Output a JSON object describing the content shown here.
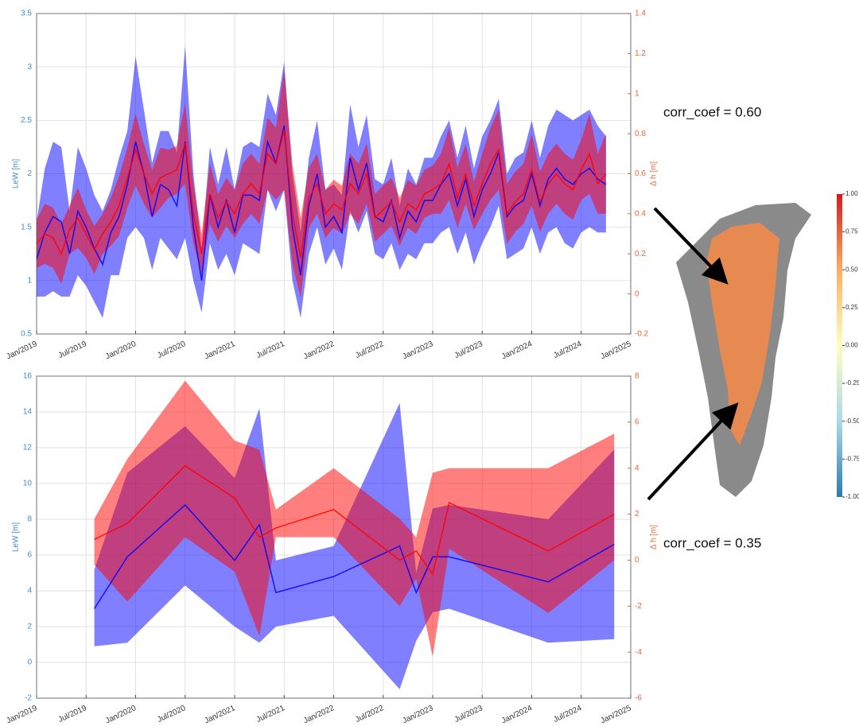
{
  "chart_data": [
    {
      "type": "line-band",
      "ylabel": "LeW [m]",
      "y2label": "Δ h [m]",
      "grid": true,
      "xlim": [
        "2019-01",
        "2025-01"
      ],
      "xticks": [
        {
          "value": "2019-01",
          "label": "Jan/2019"
        },
        {
          "value": "2019-07",
          "label": "Jul/2019"
        },
        {
          "value": "2020-01",
          "label": "Jan/2020"
        },
        {
          "value": "2020-07",
          "label": "Jul/2020"
        },
        {
          "value": "2021-01",
          "label": "Jan/2021"
        },
        {
          "value": "2021-07",
          "label": "Jul/2021"
        },
        {
          "value": "2022-01",
          "label": "Jan/2022"
        },
        {
          "value": "2022-07",
          "label": "Jul/2022"
        },
        {
          "value": "2023-01",
          "label": "Jan/2023"
        },
        {
          "value": "2023-07",
          "label": "Jul/2023"
        },
        {
          "value": "2024-01",
          "label": "Jan/2024"
        },
        {
          "value": "2024-07",
          "label": "Jul/2024"
        },
        {
          "value": "2025-01",
          "label": "Jan/2025"
        }
      ],
      "ylim": [
        0.5,
        3.5
      ],
      "yticks": [
        0.5,
        1,
        1.5,
        2,
        2.5,
        3,
        3.5
      ],
      "y2lim": [
        -0.2,
        1.4
      ],
      "y2ticks": [
        -0.2,
        0,
        0.2,
        0.4,
        0.6,
        0.8,
        1,
        1.2,
        1.4
      ],
      "x": [
        "2019-01",
        "2019-02",
        "2019-03",
        "2019-04",
        "2019-05",
        "2019-06",
        "2019-07",
        "2019-08",
        "2019-09",
        "2019-10",
        "2019-11",
        "2019-12",
        "2020-01",
        "2020-02",
        "2020-03",
        "2020-04",
        "2020-05",
        "2020-06",
        "2020-07",
        "2020-08",
        "2020-09",
        "2020-10",
        "2020-11",
        "2020-12",
        "2021-01",
        "2021-02",
        "2021-03",
        "2021-04",
        "2021-05",
        "2021-06",
        "2021-07",
        "2021-08",
        "2021-09",
        "2021-10",
        "2021-11",
        "2021-12",
        "2022-01",
        "2022-02",
        "2022-03",
        "2022-04",
        "2022-05",
        "2022-06",
        "2022-07",
        "2022-08",
        "2022-09",
        "2022-10",
        "2022-11",
        "2022-12",
        "2023-01",
        "2023-02",
        "2023-03",
        "2023-04",
        "2023-05",
        "2023-06",
        "2023-07",
        "2023-08",
        "2023-09",
        "2023-10",
        "2023-11",
        "2023-12",
        "2024-01",
        "2024-02",
        "2024-03",
        "2024-04",
        "2024-05",
        "2024-06",
        "2024-07",
        "2024-08",
        "2024-09",
        "2024-10"
      ],
      "series": [
        {
          "color": "#0000ff",
          "values": [
            1.2,
            1.45,
            1.6,
            1.55,
            1.25,
            1.65,
            1.5,
            1.3,
            1.15,
            1.45,
            1.6,
            1.9,
            2.3,
            2.0,
            1.6,
            1.9,
            1.85,
            1.7,
            2.3,
            1.5,
            1.0,
            1.8,
            1.5,
            1.75,
            1.45,
            1.8,
            1.8,
            1.75,
            2.3,
            2.1,
            2.45,
            1.5,
            1.05,
            1.7,
            2.0,
            1.5,
            1.6,
            1.45,
            2.15,
            1.85,
            2.1,
            1.6,
            1.55,
            1.75,
            1.4,
            1.65,
            1.55,
            1.75,
            1.75,
            1.9,
            2.0,
            1.7,
            1.95,
            1.6,
            1.85,
            2.0,
            2.2,
            1.6,
            1.7,
            1.75,
            2.0,
            1.7,
            1.95,
            2.05,
            1.95,
            1.9,
            2.0,
            2.05,
            1.95,
            1.9
          ],
          "errors": [
            0.35,
            0.6,
            0.7,
            0.7,
            0.4,
            0.6,
            0.55,
            0.5,
            0.5,
            0.4,
            0.55,
            0.5,
            0.8,
            0.6,
            0.5,
            0.5,
            0.55,
            0.5,
            0.9,
            0.5,
            0.3,
            0.45,
            0.4,
            0.5,
            0.4,
            0.45,
            0.5,
            0.5,
            0.45,
            0.45,
            0.6,
            0.5,
            0.4,
            0.45,
            0.5,
            0.35,
            0.3,
            0.35,
            0.5,
            0.4,
            0.45,
            0.35,
            0.35,
            0.4,
            0.3,
            0.4,
            0.35,
            0.4,
            0.4,
            0.45,
            0.5,
            0.45,
            0.5,
            0.45,
            0.5,
            0.5,
            0.5,
            0.4,
            0.45,
            0.45,
            0.5,
            0.45,
            0.5,
            0.55,
            0.6,
            0.6,
            0.55,
            0.55,
            0.5,
            0.45
          ]
        },
        {
          "color": "#ff0000",
          "axis": "y2",
          "values": [
            0.25,
            0.3,
            0.28,
            0.2,
            0.32,
            0.38,
            0.3,
            0.22,
            0.3,
            0.36,
            0.44,
            0.58,
            0.72,
            0.6,
            0.5,
            0.58,
            0.6,
            0.62,
            0.75,
            0.4,
            0.2,
            0.5,
            0.38,
            0.46,
            0.4,
            0.5,
            0.55,
            0.5,
            0.7,
            0.65,
            0.82,
            0.4,
            0.18,
            0.48,
            0.55,
            0.4,
            0.45,
            0.42,
            0.55,
            0.5,
            0.6,
            0.38,
            0.42,
            0.46,
            0.36,
            0.45,
            0.42,
            0.5,
            0.52,
            0.55,
            0.65,
            0.48,
            0.6,
            0.44,
            0.55,
            0.65,
            0.72,
            0.4,
            0.46,
            0.5,
            0.62,
            0.46,
            0.55,
            0.6,
            0.55,
            0.52,
            0.62,
            0.7,
            0.55,
            0.6
          ],
          "errors": [
            0.12,
            0.15,
            0.15,
            0.15,
            0.12,
            0.15,
            0.12,
            0.12,
            0.1,
            0.12,
            0.15,
            0.15,
            0.18,
            0.15,
            0.12,
            0.15,
            0.12,
            0.12,
            0.2,
            0.15,
            0.1,
            0.15,
            0.12,
            0.12,
            0.12,
            0.15,
            0.15,
            0.15,
            0.18,
            0.18,
            0.3,
            0.25,
            0.2,
            0.15,
            0.15,
            0.12,
            0.12,
            0.12,
            0.15,
            0.15,
            0.15,
            0.12,
            0.12,
            0.12,
            0.12,
            0.12,
            0.12,
            0.12,
            0.12,
            0.15,
            0.18,
            0.15,
            0.15,
            0.12,
            0.15,
            0.18,
            0.2,
            0.15,
            0.15,
            0.15,
            0.18,
            0.15,
            0.15,
            0.15,
            0.15,
            0.15,
            0.15,
            0.2,
            0.15,
            0.2
          ]
        }
      ]
    },
    {
      "type": "line-band",
      "ylabel": "LeW [m]",
      "y2label": "Δ h [m]",
      "grid": true,
      "xlim": [
        "2019-01",
        "2025-01"
      ],
      "xticks": [
        {
          "value": "2019-01",
          "label": "Jan/2019"
        },
        {
          "value": "2019-07",
          "label": "Jul/2019"
        },
        {
          "value": "2020-01",
          "label": "Jan/2020"
        },
        {
          "value": "2020-07",
          "label": "Jul/2020"
        },
        {
          "value": "2021-01",
          "label": "Jan/2021"
        },
        {
          "value": "2021-07",
          "label": "Jul/2021"
        },
        {
          "value": "2022-01",
          "label": "Jan/2022"
        },
        {
          "value": "2022-07",
          "label": "Jul/2022"
        },
        {
          "value": "2023-01",
          "label": "Jan/2023"
        },
        {
          "value": "2023-07",
          "label": "Jul/2023"
        },
        {
          "value": "2024-01",
          "label": "Jan/2024"
        },
        {
          "value": "2024-07",
          "label": "Jul/2024"
        },
        {
          "value": "2025-01",
          "label": "Jan/2025"
        }
      ],
      "ylim": [
        -2,
        16
      ],
      "yticks": [
        -2,
        0,
        2,
        4,
        6,
        8,
        10,
        12,
        14,
        16
      ],
      "y2lim": [
        -6,
        8
      ],
      "y2ticks": [
        -6,
        -4,
        -2,
        0,
        2,
        4,
        6,
        8
      ],
      "x": [
        "2019-08",
        "2019-12",
        "2020-07",
        "2021-01",
        "2021-04",
        "2021-06",
        "2022-01",
        "2022-09",
        "2022-11",
        "2023-01",
        "2023-03",
        "2024-03",
        "2024-11"
      ],
      "series": [
        {
          "color": "#0000ff",
          "values": [
            3.0,
            5.9,
            8.8,
            5.7,
            7.7,
            3.9,
            4.8,
            6.5,
            3.9,
            5.9,
            5.9,
            4.5,
            6.6
          ],
          "lower": [
            0.9,
            1.1,
            4.3,
            2.0,
            1.1,
            2.0,
            2.6,
            -1.5,
            1.2,
            2.8,
            3.0,
            1.1,
            1.3
          ],
          "upper": [
            5.2,
            10.6,
            13.2,
            10.3,
            14.2,
            5.7,
            6.5,
            14.5,
            5.0,
            8.6,
            8.8,
            8.0,
            11.9
          ]
        },
        {
          "color": "#ff0000",
          "axis": "y2",
          "values": [
            0.9,
            1.6,
            4.1,
            2.7,
            1.0,
            1.4,
            2.2,
            0.0,
            0.4,
            -0.6,
            2.5,
            0.4,
            2.0
          ],
          "lower": [
            -0.2,
            -1.8,
            1.0,
            -0.5,
            -3.3,
            1.0,
            1.0,
            -2.0,
            -0.8,
            -4.2,
            0.5,
            -2.3,
            0.0
          ],
          "upper": [
            1.8,
            4.4,
            7.8,
            5.2,
            4.8,
            2.2,
            4.0,
            1.8,
            1.0,
            3.8,
            4.0,
            4.0,
            5.5
          ]
        }
      ]
    }
  ],
  "annotations": [
    "corr_coef = 0.60",
    "corr_coef = 0.35"
  ],
  "colorbar": {
    "ylim": [
      -1,
      1
    ],
    "yticks": [
      {
        "value": 1,
        "label": "1.00"
      },
      {
        "value": 0.75,
        "label": "0.75"
      },
      {
        "value": 0.5,
        "label": "0.50"
      },
      {
        "value": 0.25,
        "label": "0.25"
      },
      {
        "value": 0,
        "label": "0.00"
      },
      {
        "value": -0.25,
        "label": "-0.25"
      },
      {
        "value": -0.5,
        "label": "-0.50"
      },
      {
        "value": -0.75,
        "label": "-0.75"
      },
      {
        "value": -1,
        "label": "-1.00"
      }
    ]
  }
}
